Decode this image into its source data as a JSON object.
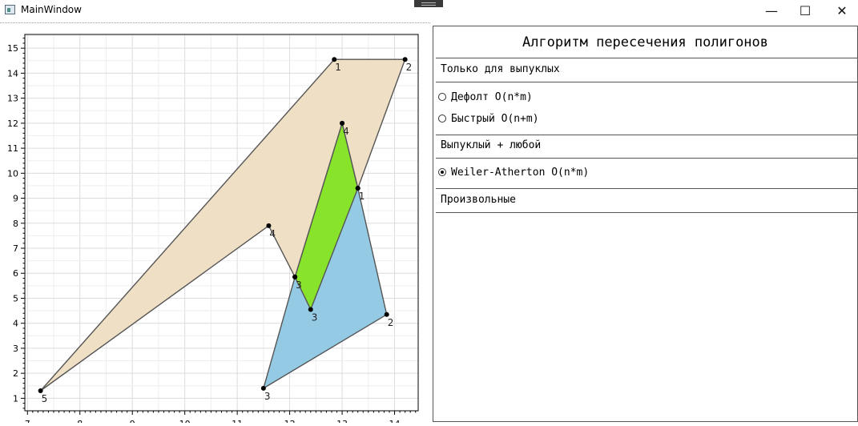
{
  "window": {
    "title": "MainWindow",
    "minimize_glyph": "—",
    "maximize_glyph": "☐",
    "close_glyph": "✕"
  },
  "panel": {
    "title": "Алгоритм пересечения полигонов",
    "section_convex": "Только для выпуклых",
    "radio_default": "Дефолт O(n*m)",
    "radio_fast": "Быстрый O(n+m)",
    "section_mixed": "Выпуклый + любой",
    "radio_weiler": "Weiler-Atherton O(n*m)",
    "section_arbitrary": "Произвольные",
    "selected": "radio_weiler"
  },
  "chart_data": {
    "type": "polygon-plot",
    "xlim": [
      6.95,
      14.45
    ],
    "ylim": [
      0.5,
      15.55
    ],
    "x_ticks": [
      7,
      8,
      9,
      10,
      11,
      12,
      13,
      14
    ],
    "y_ticks": [
      1,
      2,
      3,
      4,
      5,
      6,
      7,
      8,
      9,
      10,
      11,
      12,
      13,
      14,
      15
    ],
    "grid": true,
    "colors": {
      "polygon_a": "#efdfc5",
      "polygon_b": "#94cae4",
      "intersection": "#88e32b",
      "edge": "#555555"
    },
    "polygons": [
      {
        "name": "",
        "color_key": "polygon_a",
        "points": [
          {
            "x": 12.85,
            "y": 14.55,
            "label": "1"
          },
          {
            "x": 14.2,
            "y": 14.55,
            "label": "2"
          },
          {
            "x": 13.3,
            "y": 9.4,
            "label": ""
          },
          {
            "x": 13.0,
            "y": 12.0,
            "label": ""
          },
          {
            "x": 12.1,
            "y": 5.85,
            "label": "3"
          },
          {
            "x": 11.6,
            "y": 7.9,
            "label": "4"
          },
          {
            "x": 7.25,
            "y": 1.3,
            "label": "5"
          }
        ]
      },
      {
        "name": "",
        "color_key": "polygon_b",
        "points": [
          {
            "x": 13.3,
            "y": 9.4,
            "label": "1"
          },
          {
            "x": 13.85,
            "y": 4.35,
            "label": "2"
          },
          {
            "x": 11.5,
            "y": 1.4,
            "label": "3"
          },
          {
            "x": 12.1,
            "y": 5.85,
            "label": ""
          }
        ]
      },
      {
        "name": "",
        "color_key": "intersection",
        "points": [
          {
            "x": 13.0,
            "y": 12.0,
            "label": "4"
          },
          {
            "x": 13.3,
            "y": 9.4,
            "label": ""
          },
          {
            "x": 12.4,
            "y": 4.55,
            "label": "3"
          },
          {
            "x": 12.1,
            "y": 5.85,
            "label": ""
          }
        ]
      }
    ]
  }
}
